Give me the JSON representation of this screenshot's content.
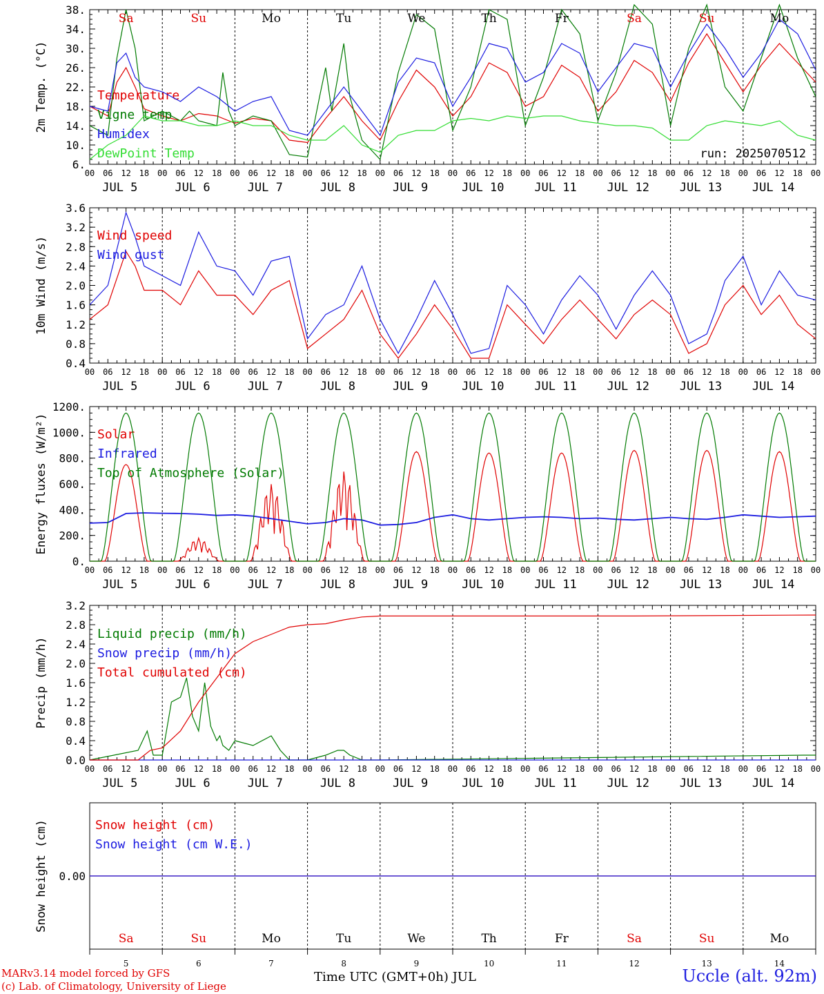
{
  "run_label": "run: 2025070512",
  "footer": {
    "line1": "MARv3.14 model forced by GFS",
    "line2": "(c) Lab. of Climatology, University of Liege",
    "station": "Uccle (alt. 92m)",
    "xaxis_title": "Time UTC (GMT+0h) JUL"
  },
  "colors": {
    "red": "#e00000",
    "green": "#007a00",
    "blue": "#1a1ae0",
    "lime": "#33dd33"
  },
  "days": [
    5,
    6,
    7,
    8,
    9,
    10,
    11,
    12,
    13,
    14
  ],
  "day_labels": [
    "JUL  5",
    "JUL  6",
    "JUL  7",
    "JUL  8",
    "JUL  9",
    "JUL 10",
    "JUL 11",
    "JUL 12",
    "JUL 13",
    "JUL 14"
  ],
  "weekdays": [
    "Sa",
    "Su",
    "Mo",
    "Tu",
    "We",
    "Th",
    "Fr",
    "Sa",
    "Su",
    "Mo"
  ],
  "weekend": [
    true,
    true,
    false,
    false,
    false,
    false,
    false,
    true,
    true,
    false
  ],
  "hour_labels": [
    "00",
    "06",
    "12",
    "18"
  ],
  "chart_data": [
    {
      "type": "line",
      "ylabel": "2m Temp. (°C)",
      "ylim": [
        6,
        38
      ],
      "yticks": [
        "6.",
        "10.",
        "14.",
        "18.",
        "22.",
        "26.",
        "30.",
        "34.",
        "38."
      ],
      "x_unit": "hours since JUL 5 00 UTC",
      "xlim": [
        0,
        240
      ],
      "series": [
        {
          "name": "Temperature",
          "color": "red",
          "x": [
            0,
            6,
            9,
            12,
            15,
            18,
            24,
            30,
            36,
            42,
            48,
            54,
            60,
            66,
            72,
            78,
            84,
            90,
            96,
            102,
            108,
            114,
            120,
            126,
            132,
            138,
            144,
            150,
            156,
            162,
            168,
            174,
            180,
            186,
            192,
            198,
            204,
            210,
            216,
            222,
            228,
            234,
            240
          ],
          "values": [
            18,
            16,
            23,
            26,
            22,
            17.5,
            16,
            15,
            16.5,
            16,
            14.5,
            15.5,
            15,
            11,
            10.5,
            15.5,
            20,
            15,
            11,
            19,
            25.5,
            22,
            16,
            20,
            27,
            25,
            18,
            20,
            26.5,
            24,
            17,
            21,
            27.5,
            25,
            19,
            27,
            33,
            27,
            21,
            26.5,
            31,
            27,
            23
          ]
        },
        {
          "name": "Vigne temp",
          "color": "green",
          "x": [
            0,
            6,
            9,
            12,
            15,
            18,
            24,
            30,
            33,
            36,
            42,
            44,
            46,
            48,
            54,
            60,
            66,
            72,
            76,
            78,
            80,
            84,
            86,
            90,
            96,
            102,
            108,
            114,
            120,
            126,
            132,
            138,
            144,
            150,
            156,
            162,
            168,
            174,
            180,
            186,
            192,
            198,
            204,
            210,
            216,
            222,
            228,
            234,
            240
          ],
          "values": [
            14,
            12,
            28,
            38,
            30,
            15,
            17,
            15,
            17,
            15,
            14,
            25,
            17,
            14,
            16,
            15,
            8,
            7.5,
            20,
            26,
            17,
            31,
            20,
            11,
            7,
            25,
            37,
            34,
            13,
            22,
            38,
            36,
            14,
            24,
            38,
            33,
            15,
            25,
            39,
            35,
            14,
            30,
            39,
            22,
            17,
            28,
            39,
            28,
            20
          ]
        },
        {
          "name": "Humidex",
          "color": "blue",
          "x": [
            0,
            6,
            9,
            12,
            15,
            18,
            24,
            30,
            36,
            42,
            48,
            54,
            60,
            66,
            72,
            78,
            84,
            90,
            96,
            102,
            108,
            114,
            120,
            126,
            132,
            138,
            144,
            150,
            156,
            162,
            168,
            174,
            180,
            186,
            192,
            198,
            204,
            210,
            216,
            222,
            228,
            234,
            240
          ],
          "values": [
            18,
            17,
            27,
            29,
            24,
            22,
            21,
            19,
            22,
            20,
            17,
            19,
            20,
            13,
            12,
            17,
            22,
            17,
            12,
            23,
            28,
            27,
            18,
            24,
            31,
            30,
            23,
            25,
            31,
            29,
            21,
            26,
            31,
            30,
            22,
            29,
            35,
            30,
            24,
            29,
            36,
            33,
            25.5
          ]
        },
        {
          "name": "DewPoint Temp",
          "color": "lime",
          "x": [
            0,
            6,
            12,
            18,
            24,
            30,
            36,
            42,
            48,
            54,
            60,
            66,
            72,
            78,
            84,
            90,
            96,
            102,
            108,
            114,
            120,
            126,
            132,
            138,
            144,
            150,
            156,
            162,
            168,
            174,
            180,
            186,
            192,
            198,
            204,
            210,
            216,
            222,
            228,
            234,
            240
          ],
          "values": [
            7,
            10,
            12,
            16,
            15,
            15,
            14,
            14,
            15,
            14,
            14,
            12,
            11,
            11,
            14,
            10,
            8.5,
            12,
            13,
            13,
            15,
            15.5,
            15,
            16,
            15.5,
            16,
            16,
            15,
            14.5,
            14,
            14,
            13.5,
            11,
            11,
            14,
            15,
            14.5,
            14,
            15,
            12,
            11
          ]
        }
      ]
    },
    {
      "type": "line",
      "ylabel": "10m Wind (m/s)",
      "ylim": [
        0.4,
        3.6
      ],
      "yticks": [
        "0.4",
        "0.8",
        "1.2",
        "1.6",
        "2.0",
        "2.4",
        "2.8",
        "3.2",
        "3.6"
      ],
      "x_unit": "hours since JUL 5 00 UTC",
      "xlim": [
        0,
        240
      ],
      "series": [
        {
          "name": "Wind speed",
          "color": "red",
          "x": [
            0,
            6,
            12,
            15,
            18,
            24,
            30,
            36,
            42,
            48,
            54,
            60,
            66,
            72,
            78,
            84,
            90,
            96,
            102,
            108,
            114,
            120,
            126,
            132,
            138,
            144,
            150,
            156,
            162,
            168,
            174,
            180,
            186,
            192,
            198,
            204,
            207,
            210,
            216,
            222,
            228,
            234,
            240
          ],
          "values": [
            1.3,
            1.6,
            2.7,
            2.4,
            1.9,
            1.9,
            1.6,
            2.3,
            1.8,
            1.8,
            1.4,
            1.9,
            2.1,
            0.7,
            1.0,
            1.3,
            1.9,
            1.0,
            0.5,
            1.0,
            1.6,
            1.1,
            0.5,
            0.5,
            1.6,
            1.2,
            0.8,
            1.3,
            1.7,
            1.3,
            0.9,
            1.4,
            1.7,
            1.4,
            0.6,
            0.8,
            1.2,
            1.6,
            2.0,
            1.4,
            1.8,
            1.2,
            0.9
          ]
        },
        {
          "name": "Wind gust",
          "color": "blue",
          "x": [
            0,
            6,
            12,
            15,
            18,
            24,
            30,
            36,
            42,
            48,
            54,
            60,
            66,
            72,
            78,
            84,
            90,
            96,
            102,
            108,
            114,
            120,
            126,
            132,
            138,
            144,
            150,
            156,
            162,
            168,
            174,
            180,
            186,
            192,
            198,
            204,
            207,
            210,
            216,
            222,
            228,
            234,
            240
          ],
          "values": [
            1.6,
            2.0,
            3.5,
            3.0,
            2.4,
            2.2,
            2.0,
            3.1,
            2.4,
            2.3,
            1.8,
            2.5,
            2.6,
            0.9,
            1.4,
            1.6,
            2.4,
            1.3,
            0.6,
            1.3,
            2.1,
            1.4,
            0.6,
            0.7,
            2.0,
            1.6,
            1.0,
            1.7,
            2.2,
            1.8,
            1.1,
            1.8,
            2.3,
            1.8,
            0.8,
            1.0,
            1.5,
            2.1,
            2.6,
            1.6,
            2.3,
            1.8,
            1.7
          ]
        }
      ]
    },
    {
      "type": "line",
      "ylabel": "Energy fluxes (W/m²)",
      "ylim": [
        0,
        1200
      ],
      "yticks": [
        "0.",
        "200.",
        "400.",
        "600.",
        "800.",
        "1000.",
        "1200."
      ],
      "x_unit": "hours since JUL 5 00 UTC",
      "xlim": [
        0,
        240
      ],
      "series": [
        {
          "name": "Solar",
          "color": "red",
          "peaks": [
            [
              5,
              750,
              "smooth"
            ],
            [
              6,
              180,
              "noisy"
            ],
            [
              7,
              600,
              "noisy"
            ],
            [
              8,
              700,
              "noisy"
            ],
            [
              9,
              850,
              "smooth"
            ],
            [
              10,
              840,
              "smooth"
            ],
            [
              11,
              840,
              "smooth"
            ],
            [
              12,
              860,
              "smooth"
            ],
            [
              13,
              860,
              "smooth"
            ],
            [
              14,
              850,
              "smooth"
            ]
          ]
        },
        {
          "name": "Infrared",
          "color": "blue",
          "x": [
            0,
            6,
            12,
            18,
            24,
            30,
            36,
            42,
            48,
            54,
            60,
            66,
            72,
            78,
            84,
            90,
            96,
            102,
            108,
            114,
            120,
            126,
            132,
            138,
            144,
            150,
            156,
            162,
            168,
            174,
            180,
            186,
            192,
            198,
            204,
            210,
            216,
            222,
            228,
            234,
            240
          ],
          "values": [
            295,
            300,
            370,
            375,
            372,
            370,
            365,
            355,
            360,
            350,
            330,
            310,
            290,
            300,
            330,
            320,
            280,
            285,
            300,
            340,
            360,
            330,
            320,
            330,
            340,
            345,
            340,
            330,
            335,
            325,
            320,
            330,
            340,
            330,
            325,
            340,
            360,
            350,
            340,
            345,
            350
          ]
        },
        {
          "name": "Top of Atmosphere (Solar)",
          "color": "green",
          "peak": 1150
        }
      ]
    },
    {
      "type": "line",
      "ylabel": "Precip (mm/h)",
      "ylim": [
        0,
        3.2
      ],
      "yticks": [
        "0.0",
        "0.4",
        "0.8",
        "1.2",
        "1.6",
        "2.0",
        "2.4",
        "2.8",
        "3.2"
      ],
      "x_unit": "hours since JUL 5 00 UTC",
      "xlim": [
        0,
        240
      ],
      "series": [
        {
          "name": "Liquid precip (mm/h)",
          "color": "green",
          "x": [
            0,
            16,
            19,
            21,
            24,
            27,
            30,
            32,
            34,
            36,
            38,
            40,
            42,
            43,
            44,
            46,
            48,
            54,
            60,
            63,
            66,
            72,
            78,
            82,
            84,
            86,
            90,
            96,
            236,
            240
          ],
          "values": [
            0,
            0.2,
            0.6,
            0.1,
            0.1,
            1.2,
            1.3,
            1.7,
            0.9,
            0.6,
            1.6,
            0.7,
            0.4,
            0.5,
            0.3,
            0.2,
            0.4,
            0.3,
            0.5,
            0.2,
            0,
            0,
            0.1,
            0.2,
            0.2,
            0.1,
            0,
            0,
            0.1,
            0.1
          ]
        },
        {
          "name": "Snow precip (mm/h)",
          "color": "blue",
          "x": [
            0,
            240
          ],
          "values": [
            0,
            0
          ]
        },
        {
          "name": "Total cumulated (cm)",
          "color": "red",
          "x": [
            0,
            16,
            20,
            24,
            30,
            36,
            42,
            48,
            54,
            60,
            66,
            72,
            78,
            84,
            90,
            96,
            120,
            180,
            240
          ],
          "values": [
            0,
            0,
            0.2,
            0.25,
            0.6,
            1.2,
            1.7,
            2.2,
            2.45,
            2.6,
            2.75,
            2.8,
            2.82,
            2.9,
            2.96,
            2.98,
            2.98,
            2.98,
            3.0
          ]
        }
      ]
    },
    {
      "type": "line",
      "ylabel": "Snow height (cm)",
      "ylim": [
        -1,
        1
      ],
      "yticks": [
        "0.00"
      ],
      "x_unit": "hours since JUL 5 00 UTC",
      "xlim": [
        0,
        240
      ],
      "series": [
        {
          "name": "Snow height (cm)",
          "color": "red",
          "x": [
            0,
            240
          ],
          "values": [
            0,
            0
          ]
        },
        {
          "name": "Snow height (cm W.E.)",
          "color": "blue",
          "x": [
            0,
            240
          ],
          "values": [
            0,
            0
          ]
        }
      ]
    }
  ]
}
